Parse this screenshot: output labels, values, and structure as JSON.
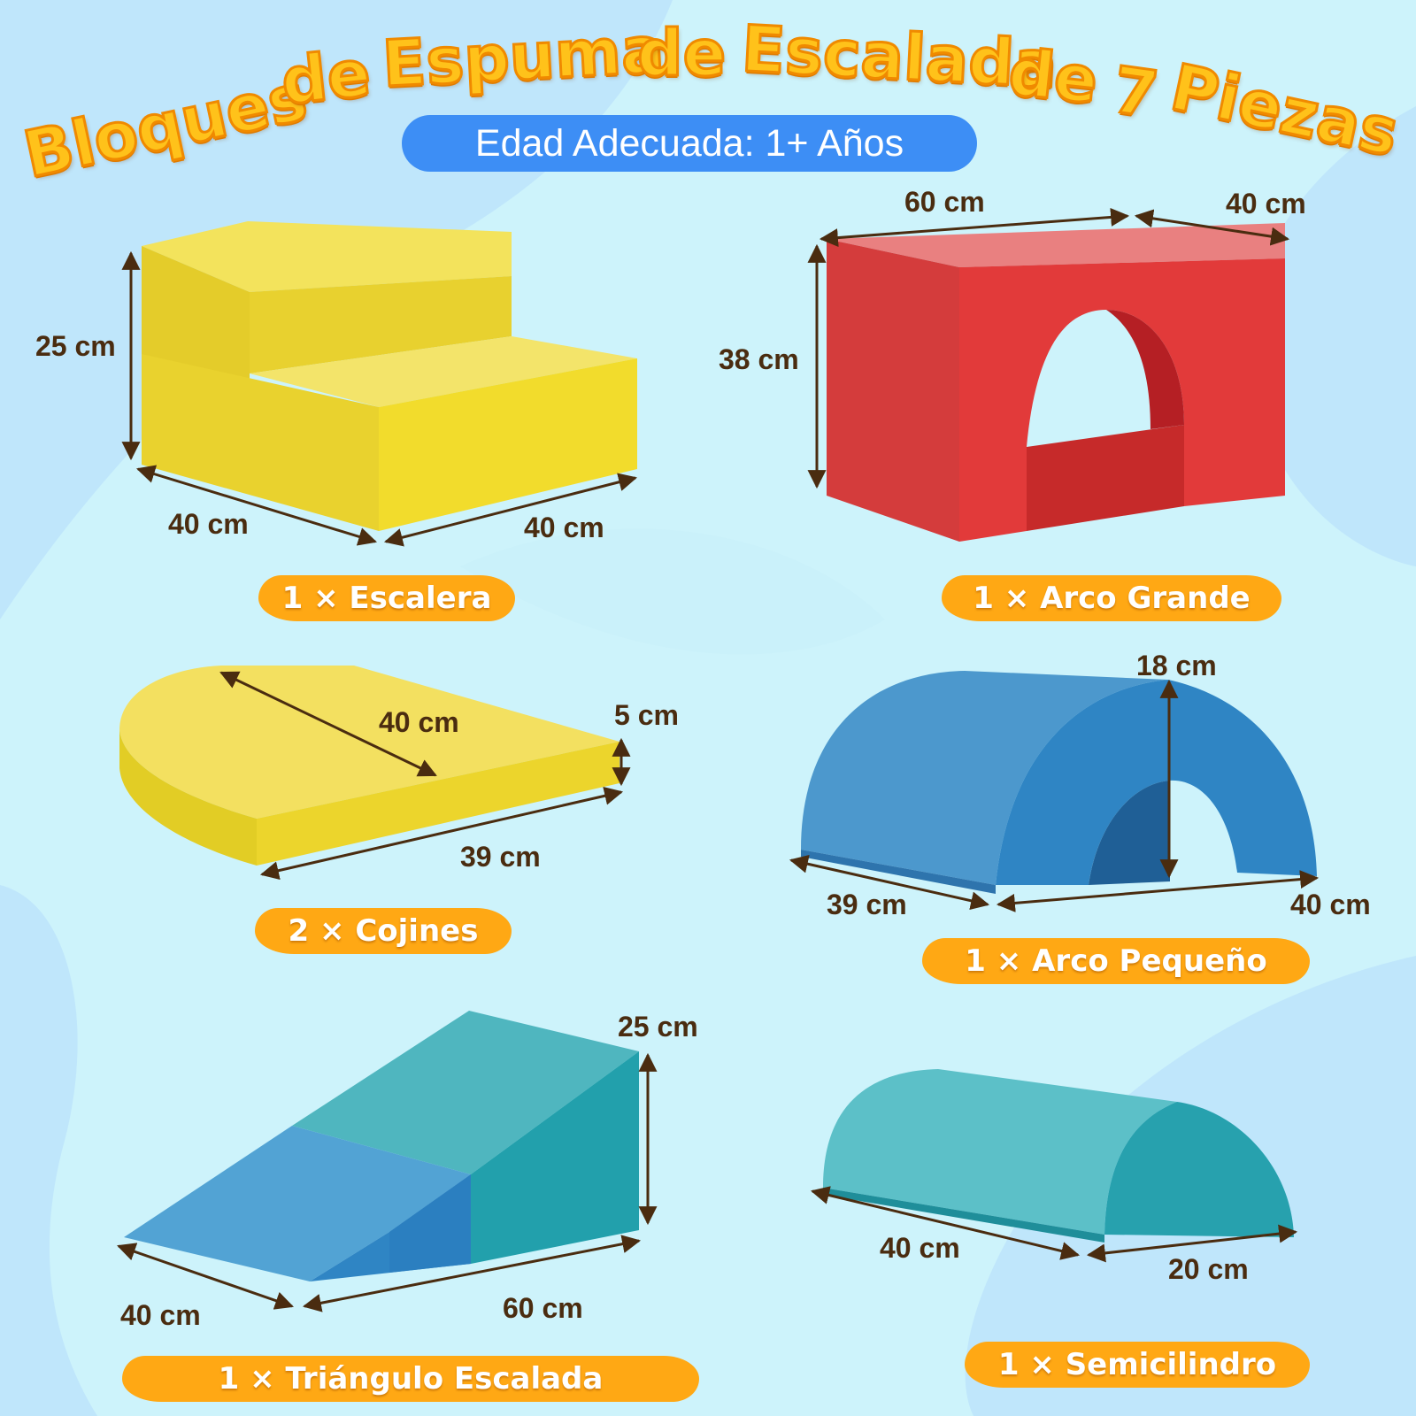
{
  "title_words": [
    "Bloques",
    "de",
    "Espuma",
    "de",
    "Escalada",
    "de",
    "7",
    "Piezas"
  ],
  "age_label": "Edad Adecuada: 1+ Años",
  "pieces": {
    "stairs": {
      "label": "1 × Escalera",
      "height": "25 cm",
      "depth": "40 cm",
      "width": "40 cm",
      "color": "#ecd72e"
    },
    "big_arch": {
      "label": "1 × Arco Grande",
      "length": "60 cm",
      "depth": "40 cm",
      "height": "38 cm",
      "color": "#e03a3a"
    },
    "cushions": {
      "label": "2 × Cojines",
      "radius": "40 cm",
      "thickness": "5 cm",
      "width": "39 cm",
      "color": "#ecd72e"
    },
    "small_arch": {
      "label": "1 × Arco Pequeño",
      "height": "18 cm",
      "depth": "39 cm",
      "length": "40 cm",
      "color": "#2f86c8"
    },
    "triangle": {
      "label": "1 × Triángulo Escalada",
      "height": "25 cm",
      "depth": "40 cm",
      "length": "60 cm",
      "color": "#26a8b2"
    },
    "half_cylinder": {
      "label": "1 × Semicilindro",
      "length": "40 cm",
      "width": "20 cm",
      "color": "#2ba9b5"
    }
  },
  "colors": {
    "title": "#ffc21a",
    "pill": "#3d8ef5",
    "label_bg": "#ffa814",
    "dimension_text": "#4a2c10"
  }
}
